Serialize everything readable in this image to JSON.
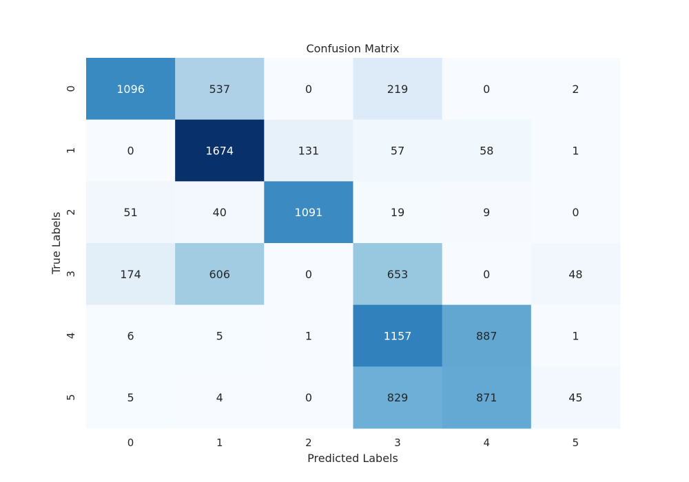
{
  "chart_data": {
    "type": "heatmap",
    "title": "Confusion Matrix",
    "xlabel": "Predicted Labels",
    "ylabel": "True Labels",
    "x_categories": [
      "0",
      "1",
      "2",
      "3",
      "4",
      "5"
    ],
    "y_categories": [
      "0",
      "1",
      "2",
      "3",
      "4",
      "5"
    ],
    "values": [
      [
        1096,
        537,
        0,
        219,
        0,
        2
      ],
      [
        0,
        1674,
        131,
        57,
        58,
        1
      ],
      [
        51,
        40,
        1091,
        19,
        9,
        0
      ],
      [
        174,
        606,
        0,
        653,
        0,
        48
      ],
      [
        6,
        5,
        1,
        1157,
        887,
        1
      ],
      [
        5,
        4,
        0,
        829,
        871,
        45
      ]
    ],
    "colormap": "Blues",
    "colorbar": false,
    "grid": false
  }
}
